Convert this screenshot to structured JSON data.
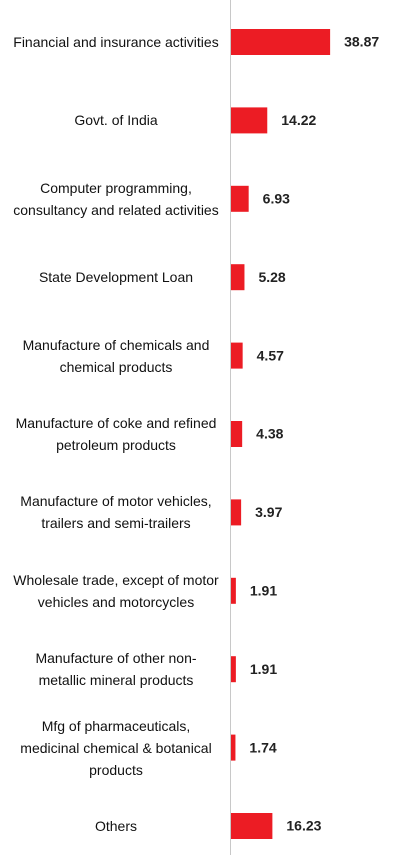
{
  "chart_data": {
    "type": "hbar",
    "categories": [
      "Financial and insurance activities",
      "Govt. of India",
      "Computer programming, consultancy and related activities",
      "State Development Loan",
      "Manufacture of chemicals and chemical products",
      "Manufacture of coke and refined petroleum products",
      "Manufacture of motor vehicles, trailers and semi-trailers",
      "Wholesale trade, except of motor vehicles and motorcycles",
      "Manufacture of other non-metallic mineral products",
      "Mfg of pharmaceuticals, medicinal chemical & botanical products",
      "Others"
    ],
    "values": [
      38.87,
      14.22,
      6.93,
      5.28,
      4.57,
      4.38,
      3.97,
      1.91,
      1.91,
      1.74,
      16.23
    ],
    "color": "#ec1c24",
    "xlim": [
      0,
      40
    ]
  }
}
